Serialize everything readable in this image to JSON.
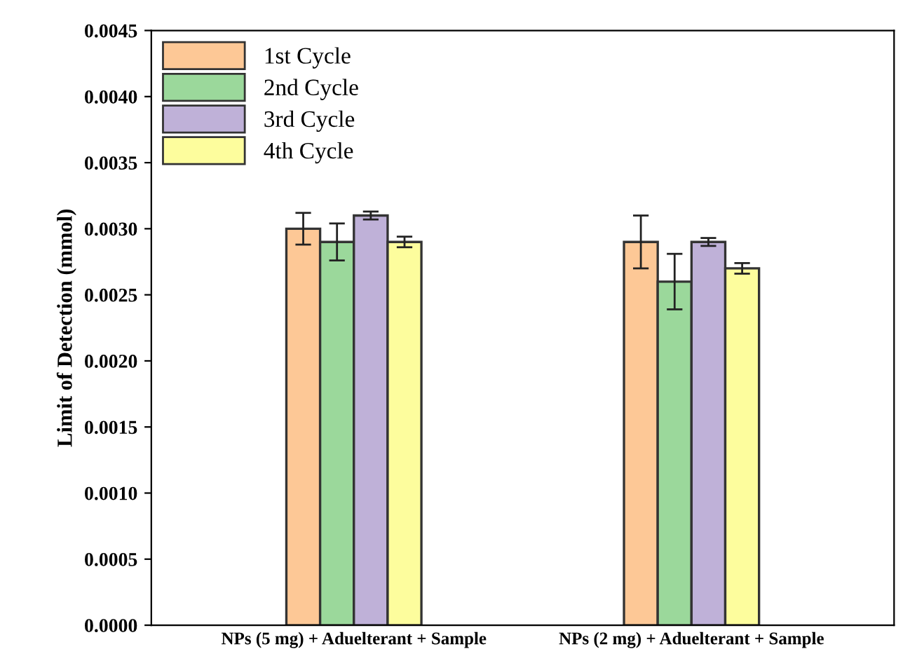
{
  "chart_data": {
    "type": "bar",
    "ylabel": "Limit of Detection (mmol)",
    "categories": [
      "NPs (5 mg) + Aduelterant + Sample",
      "NPs (2 mg) + Aduelterant + Sample"
    ],
    "series": [
      {
        "name": "1st Cycle",
        "color": "#fdc896",
        "values": [
          0.003,
          0.0029
        ],
        "errors": [
          0.00012,
          0.0002
        ]
      },
      {
        "name": "2nd Cycle",
        "color": "#9bd89b",
        "values": [
          0.0029,
          0.0026
        ],
        "errors": [
          0.00014,
          0.00021
        ]
      },
      {
        "name": "3rd Cycle",
        "color": "#bfb1d8",
        "values": [
          0.0031,
          0.0029
        ],
        "errors": [
          3e-05,
          3e-05
        ]
      },
      {
        "name": "4th Cycle",
        "color": "#fdfd9d",
        "values": [
          0.0029,
          0.0027
        ],
        "errors": [
          4e-05,
          4e-05
        ]
      }
    ],
    "ylim": [
      0,
      0.0045
    ],
    "yticks": [
      {
        "value": 0,
        "label": "0.0000"
      },
      {
        "value": 0.0005,
        "label": "0.0005"
      },
      {
        "value": 0.001,
        "label": "0.0010"
      },
      {
        "value": 0.0015,
        "label": "0.0015"
      },
      {
        "value": 0.002,
        "label": "0.0020"
      },
      {
        "value": 0.0025,
        "label": "0.0025"
      },
      {
        "value": 0.003,
        "label": "0.0030"
      },
      {
        "value": 0.0035,
        "label": "0.0035"
      },
      {
        "value": 0.004,
        "label": "0.0040"
      },
      {
        "value": 0.0045,
        "label": "0.0045"
      }
    ],
    "legend": "top left",
    "grid": false
  }
}
